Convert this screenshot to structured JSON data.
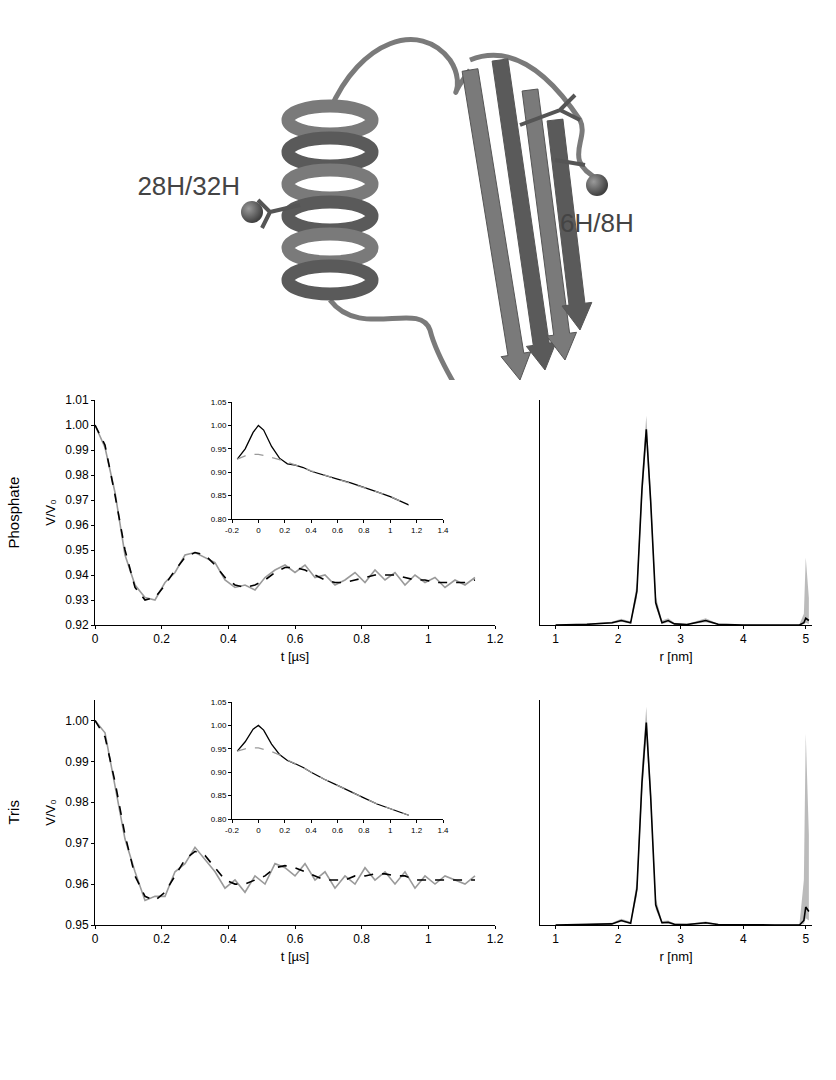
{
  "diagram": {
    "labels": [
      {
        "text": "28H/32H"
      },
      {
        "text": "6H/8H"
      }
    ]
  },
  "chart_data": [
    {
      "type": "line",
      "title": "Phosphate",
      "xlabel": "t [µs]",
      "ylabel": "V/V₀",
      "x": [
        0,
        0.03,
        0.06,
        0.09,
        0.12,
        0.15,
        0.18,
        0.21,
        0.24,
        0.27,
        0.3,
        0.33,
        0.36,
        0.39,
        0.42,
        0.45,
        0.48,
        0.51,
        0.54,
        0.57,
        0.6,
        0.63,
        0.66,
        0.69,
        0.72,
        0.75,
        0.78,
        0.81,
        0.84,
        0.87,
        0.9,
        0.93,
        0.96,
        0.99,
        1.02,
        1.05,
        1.08,
        1.11,
        1.14
      ],
      "series": [
        {
          "color": "#9a9a9a",
          "values": [
            1.0,
            0.991,
            0.973,
            0.948,
            0.936,
            0.931,
            0.93,
            0.937,
            0.941,
            0.948,
            0.949,
            0.947,
            0.945,
            0.938,
            0.935,
            0.936,
            0.934,
            0.939,
            0.942,
            0.944,
            0.941,
            0.944,
            0.939,
            0.94,
            0.936,
            0.938,
            0.941,
            0.937,
            0.942,
            0.938,
            0.941,
            0.936,
            0.94,
            0.937,
            0.939,
            0.935,
            0.938,
            0.936,
            0.939
          ]
        },
        {
          "color": "#000000",
          "line_style": "dashed",
          "values": [
            1.0,
            0.992,
            0.972,
            0.95,
            0.935,
            0.93,
            0.931,
            0.936,
            0.942,
            0.947,
            0.949,
            0.948,
            0.944,
            0.939,
            0.936,
            0.935,
            0.936,
            0.938,
            0.941,
            0.943,
            0.943,
            0.942,
            0.94,
            0.938,
            0.937,
            0.937,
            0.938,
            0.939,
            0.94,
            0.94,
            0.94,
            0.939,
            0.938,
            0.938,
            0.937,
            0.937,
            0.937,
            0.937,
            0.938
          ]
        }
      ],
      "xlim": [
        0,
        1.2
      ],
      "xticks": [
        0,
        0.2,
        0.4,
        0.6,
        0.8,
        1,
        1.2
      ],
      "ylim": [
        0.92,
        1.01
      ],
      "yticks": [
        0.92,
        0.93,
        0.94,
        0.95,
        0.96,
        0.97,
        0.98,
        0.99,
        {
          "value": 1,
          "label": "1.00"
        },
        1.01
      ]
    },
    {
      "type": "line",
      "x": [
        -0.16,
        -0.1,
        -0.04,
        0,
        0.04,
        0.1,
        0.16,
        0.22,
        0.28,
        0.34,
        0.4,
        0.5,
        0.6,
        0.7,
        0.8,
        0.9,
        1.0,
        1.1,
        1.14
      ],
      "series": [
        {
          "color": "#000000",
          "values": [
            0.928,
            0.95,
            0.985,
            1.0,
            0.99,
            0.955,
            0.93,
            0.918,
            0.915,
            0.91,
            0.902,
            0.893,
            0.885,
            0.877,
            0.868,
            0.858,
            0.848,
            0.836,
            0.83
          ]
        },
        {
          "color": "#9a9a9a",
          "line_style": "dashed",
          "values": [
            0.928,
            0.935,
            0.938,
            0.938,
            0.936,
            0.932,
            0.927,
            0.921,
            0.916,
            0.91,
            0.903,
            0.894,
            0.885,
            0.877,
            0.868,
            0.858,
            0.848,
            0.836,
            0.83
          ]
        }
      ],
      "xlim": [
        -0.2,
        1.4
      ],
      "xticks": [
        -0.2,
        0,
        0.2,
        0.4,
        0.6,
        0.8,
        1,
        1.2,
        1.4
      ],
      "ylim": [
        0.8,
        1.05
      ],
      "yticks": [
        {
          "value": 0.8,
          "label": "0.80"
        },
        0.85,
        {
          "value": 0.9,
          "label": "0.90"
        },
        0.95,
        {
          "value": 1,
          "label": "1.00"
        },
        1.05
      ]
    },
    {
      "type": "line",
      "xlabel": "r [nm]",
      "tick_labels": "x",
      "x": [
        1.0,
        1.5,
        1.9,
        2.05,
        2.2,
        2.3,
        2.38,
        2.45,
        2.52,
        2.6,
        2.7,
        2.8,
        2.9,
        3.1,
        3.4,
        3.6,
        4.0,
        4.5,
        4.9,
        4.97,
        5.0,
        5.05
      ],
      "series": [
        {
          "color": "#000000",
          "values": [
            0,
            0.003,
            0.01,
            0.02,
            0.01,
            0.15,
            0.6,
            0.87,
            0.55,
            0.1,
            0.01,
            0.02,
            0.005,
            0.002,
            0.02,
            0.003,
            0,
            0,
            0,
            0.01,
            0.03,
            0.02
          ],
          "band": {
            "lower": [
              0,
              0.001,
              0.006,
              0.014,
              0.006,
              0.12,
              0.55,
              0.82,
              0.5,
              0.08,
              0.005,
              0.012,
              0.002,
              0,
              0.012,
              0.001,
              0,
              0,
              0,
              0.003,
              0.01,
              0.005
            ],
            "upper": [
              0.002,
              0.006,
              0.015,
              0.028,
              0.016,
              0.19,
              0.66,
              0.93,
              0.6,
              0.13,
              0.02,
              0.03,
              0.01,
              0.005,
              0.03,
              0.006,
              0.002,
              0.002,
              0.003,
              0.05,
              0.3,
              0.12
            ]
          }
        }
      ],
      "xlim": [
        0.75,
        5.1
      ],
      "xticks": [
        1,
        2,
        3,
        4,
        5
      ],
      "ylim": [
        0,
        1
      ],
      "yticks": []
    },
    {
      "type": "line",
      "title": "Tris",
      "xlabel": "t [µs]",
      "ylabel": "V/V₀",
      "x": [
        0,
        0.03,
        0.06,
        0.09,
        0.12,
        0.15,
        0.18,
        0.21,
        0.24,
        0.27,
        0.3,
        0.33,
        0.36,
        0.39,
        0.42,
        0.45,
        0.48,
        0.51,
        0.54,
        0.57,
        0.6,
        0.63,
        0.66,
        0.69,
        0.72,
        0.75,
        0.78,
        0.81,
        0.84,
        0.87,
        0.9,
        0.93,
        0.96,
        0.99,
        1.02,
        1.05,
        1.08,
        1.11,
        1.14
      ],
      "series": [
        {
          "color": "#9a9a9a",
          "values": [
            1.0,
            0.997,
            0.984,
            0.971,
            0.963,
            0.956,
            0.957,
            0.957,
            0.963,
            0.965,
            0.969,
            0.966,
            0.963,
            0.959,
            0.961,
            0.958,
            0.962,
            0.96,
            0.965,
            0.964,
            0.962,
            0.965,
            0.961,
            0.963,
            0.959,
            0.962,
            0.96,
            0.964,
            0.961,
            0.963,
            0.96,
            0.963,
            0.959,
            0.962,
            0.96,
            0.962,
            0.961,
            0.96,
            0.962
          ]
        },
        {
          "color": "#000000",
          "line_style": "dashed",
          "values": [
            1.0,
            0.996,
            0.985,
            0.972,
            0.962,
            0.957,
            0.956,
            0.958,
            0.962,
            0.966,
            0.968,
            0.967,
            0.964,
            0.961,
            0.96,
            0.96,
            0.961,
            0.962,
            0.964,
            0.9645,
            0.964,
            0.963,
            0.962,
            0.961,
            0.961,
            0.961,
            0.962,
            0.962,
            0.9625,
            0.9625,
            0.962,
            0.962,
            0.961,
            0.961,
            0.961,
            0.961,
            0.961,
            0.961,
            0.961
          ]
        }
      ],
      "xlim": [
        0,
        1.2
      ],
      "xticks": [
        0,
        0.2,
        0.4,
        0.6,
        0.8,
        1,
        1.2
      ],
      "ylim": [
        0.95,
        1.005
      ],
      "yticks": [
        0.95,
        0.96,
        0.97,
        0.98,
        0.99,
        {
          "value": 1,
          "label": "1.00"
        }
      ]
    },
    {
      "type": "line",
      "x": [
        -0.16,
        -0.1,
        -0.04,
        0,
        0.04,
        0.1,
        0.16,
        0.22,
        0.28,
        0.34,
        0.4,
        0.5,
        0.6,
        0.7,
        0.8,
        0.9,
        1.0,
        1.1,
        1.14
      ],
      "series": [
        {
          "color": "#000000",
          "values": [
            0.945,
            0.965,
            0.992,
            1.0,
            0.99,
            0.96,
            0.938,
            0.925,
            0.918,
            0.91,
            0.9,
            0.885,
            0.872,
            0.858,
            0.845,
            0.832,
            0.822,
            0.812,
            0.808
          ]
        },
        {
          "color": "#9a9a9a",
          "line_style": "dashed",
          "values": [
            0.945,
            0.95,
            0.952,
            0.952,
            0.949,
            0.944,
            0.937,
            0.926,
            0.918,
            0.91,
            0.9,
            0.885,
            0.872,
            0.858,
            0.845,
            0.832,
            0.822,
            0.812,
            0.808
          ]
        }
      ],
      "xlim": [
        -0.2,
        1.4
      ],
      "xticks": [
        -0.2,
        0,
        0.2,
        0.4,
        0.6,
        0.8,
        1,
        1.2,
        1.4
      ],
      "ylim": [
        0.8,
        1.05
      ],
      "yticks": [
        {
          "value": 0.8,
          "label": "0.80"
        },
        0.85,
        {
          "value": 0.9,
          "label": "0.90"
        },
        0.95,
        {
          "value": 1,
          "label": "1.00"
        },
        1.05
      ]
    },
    {
      "type": "line",
      "xlabel": "r [nm]",
      "tick_labels": "x",
      "x": [
        1.0,
        1.5,
        1.9,
        2.05,
        2.2,
        2.3,
        2.38,
        2.45,
        2.52,
        2.6,
        2.7,
        2.8,
        2.9,
        3.1,
        3.4,
        3.6,
        4.0,
        4.5,
        4.9,
        4.97,
        5.0,
        5.05
      ],
      "series": [
        {
          "color": "#000000",
          "values": [
            0,
            0.001,
            0.005,
            0.02,
            0.008,
            0.16,
            0.63,
            0.9,
            0.57,
            0.09,
            0.01,
            0.012,
            0.003,
            0.002,
            0.01,
            0.002,
            0,
            0,
            0,
            0.02,
            0.08,
            0.06
          ],
          "band": {
            "lower": [
              0,
              0,
              0.002,
              0.014,
              0.004,
              0.13,
              0.57,
              0.84,
              0.52,
              0.07,
              0.005,
              0.006,
              0.001,
              0,
              0.005,
              0,
              0,
              0,
              0,
              0.005,
              0.03,
              0.02
            ],
            "upper": [
              0.002,
              0.004,
              0.01,
              0.028,
              0.014,
              0.2,
              0.7,
              0.97,
              0.62,
              0.12,
              0.018,
              0.02,
              0.007,
              0.005,
              0.016,
              0.005,
              0.002,
              0.002,
              0.005,
              0.2,
              0.85,
              0.4
            ]
          }
        }
      ],
      "xlim": [
        0.75,
        5.1
      ],
      "xticks": [
        1,
        2,
        3,
        4,
        5
      ],
      "ylim": [
        0,
        1
      ],
      "yticks": []
    }
  ]
}
